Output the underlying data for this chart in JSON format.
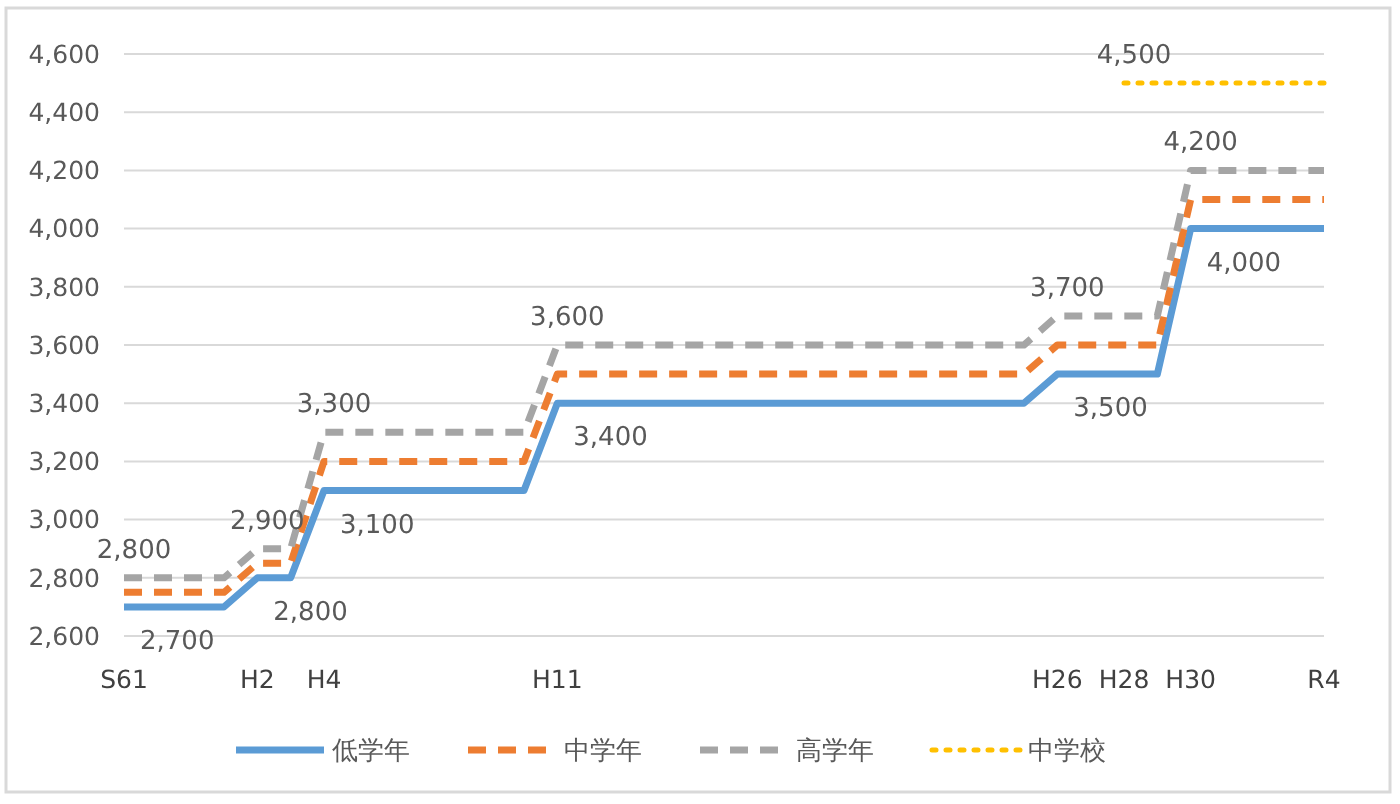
{
  "chart_data": {
    "type": "line",
    "categories": [
      "S61",
      null,
      null,
      null,
      "H2",
      null,
      "H4",
      null,
      null,
      null,
      null,
      null,
      null,
      "H11",
      null,
      null,
      null,
      null,
      null,
      null,
      null,
      null,
      null,
      null,
      null,
      null,
      null,
      null,
      "H26",
      null,
      "H28",
      null,
      "H30",
      null,
      null,
      null,
      "R4"
    ],
    "ylim": [
      2600,
      4600
    ],
    "yticks": [
      {
        "value": 2600,
        "label": "2,600"
      },
      {
        "value": 2800,
        "label": "2,800"
      },
      {
        "value": 3000,
        "label": "3,000"
      },
      {
        "value": 3200,
        "label": "3,200"
      },
      {
        "value": 3400,
        "label": "3,400"
      },
      {
        "value": 3600,
        "label": "3,600"
      },
      {
        "value": 3800,
        "label": "3,800"
      },
      {
        "value": 4000,
        "label": "4,000"
      },
      {
        "value": 4200,
        "label": "4,200"
      },
      {
        "value": 4400,
        "label": "4,400"
      },
      {
        "value": 4600,
        "label": "4,600"
      }
    ],
    "grid": "y",
    "legend": "bottom",
    "marker": "none",
    "series": [
      {
        "name": "低学年",
        "color": "#5b9bd5",
        "line_style": "solid",
        "values": [
          2700,
          2700,
          2700,
          2700,
          2800,
          2800,
          3100,
          3100,
          3100,
          3100,
          3100,
          3100,
          3100,
          3400,
          3400,
          3400,
          3400,
          3400,
          3400,
          3400,
          3400,
          3400,
          3400,
          3400,
          3400,
          3400,
          3400,
          3400,
          3500,
          3500,
          3500,
          3500,
          4000,
          4000,
          4000,
          4000,
          4000
        ],
        "value_labels": [
          "2,700",
          null,
          null,
          null,
          "2,800",
          null,
          "3,100",
          null,
          null,
          null,
          null,
          null,
          null,
          "3,400",
          null,
          null,
          null,
          null,
          null,
          null,
          null,
          null,
          null,
          null,
          null,
          null,
          null,
          null,
          "3,500",
          null,
          null,
          null,
          "4,000",
          null,
          null,
          null,
          null
        ]
      },
      {
        "name": "中学年",
        "color": "#ed7d31",
        "line_style": "dashed",
        "values": [
          2750,
          2750,
          2750,
          2750,
          2850,
          2850,
          3200,
          3200,
          3200,
          3200,
          3200,
          3200,
          3200,
          3500,
          3500,
          3500,
          3500,
          3500,
          3500,
          3500,
          3500,
          3500,
          3500,
          3500,
          3500,
          3500,
          3500,
          3500,
          3600,
          3600,
          3600,
          3600,
          4100,
          4100,
          4100,
          4100,
          4100
        ]
      },
      {
        "name": "高学年",
        "color": "#a5a5a5",
        "line_style": "dashed",
        "values": [
          2800,
          2800,
          2800,
          2800,
          2900,
          2900,
          3300,
          3300,
          3300,
          3300,
          3300,
          3300,
          3300,
          3600,
          3600,
          3600,
          3600,
          3600,
          3600,
          3600,
          3600,
          3600,
          3600,
          3600,
          3600,
          3600,
          3600,
          3600,
          3700,
          3700,
          3700,
          3700,
          4200,
          4200,
          4200,
          4200,
          4200
        ],
        "value_labels": [
          "2,800",
          null,
          null,
          null,
          "2,900",
          null,
          "3,300",
          null,
          null,
          null,
          null,
          null,
          null,
          "3,600",
          null,
          null,
          null,
          null,
          null,
          null,
          null,
          null,
          null,
          null,
          null,
          null,
          null,
          null,
          "3,700",
          null,
          null,
          null,
          "4,200",
          null,
          null,
          null,
          null
        ]
      },
      {
        "name": "中学校",
        "color": "#ffc000",
        "line_style": "dotted",
        "values": [
          null,
          null,
          null,
          null,
          null,
          null,
          null,
          null,
          null,
          null,
          null,
          null,
          null,
          null,
          null,
          null,
          null,
          null,
          null,
          null,
          null,
          null,
          null,
          null,
          null,
          null,
          null,
          null,
          null,
          null,
          4500,
          4500,
          4500,
          4500,
          4500,
          4500,
          4500
        ],
        "value_labels": [
          null,
          null,
          null,
          null,
          null,
          null,
          null,
          null,
          null,
          null,
          null,
          null,
          null,
          null,
          null,
          null,
          null,
          null,
          null,
          null,
          null,
          null,
          null,
          null,
          null,
          null,
          null,
          null,
          null,
          null,
          "4,500",
          null,
          null,
          null,
          null,
          null,
          null
        ]
      }
    ]
  }
}
